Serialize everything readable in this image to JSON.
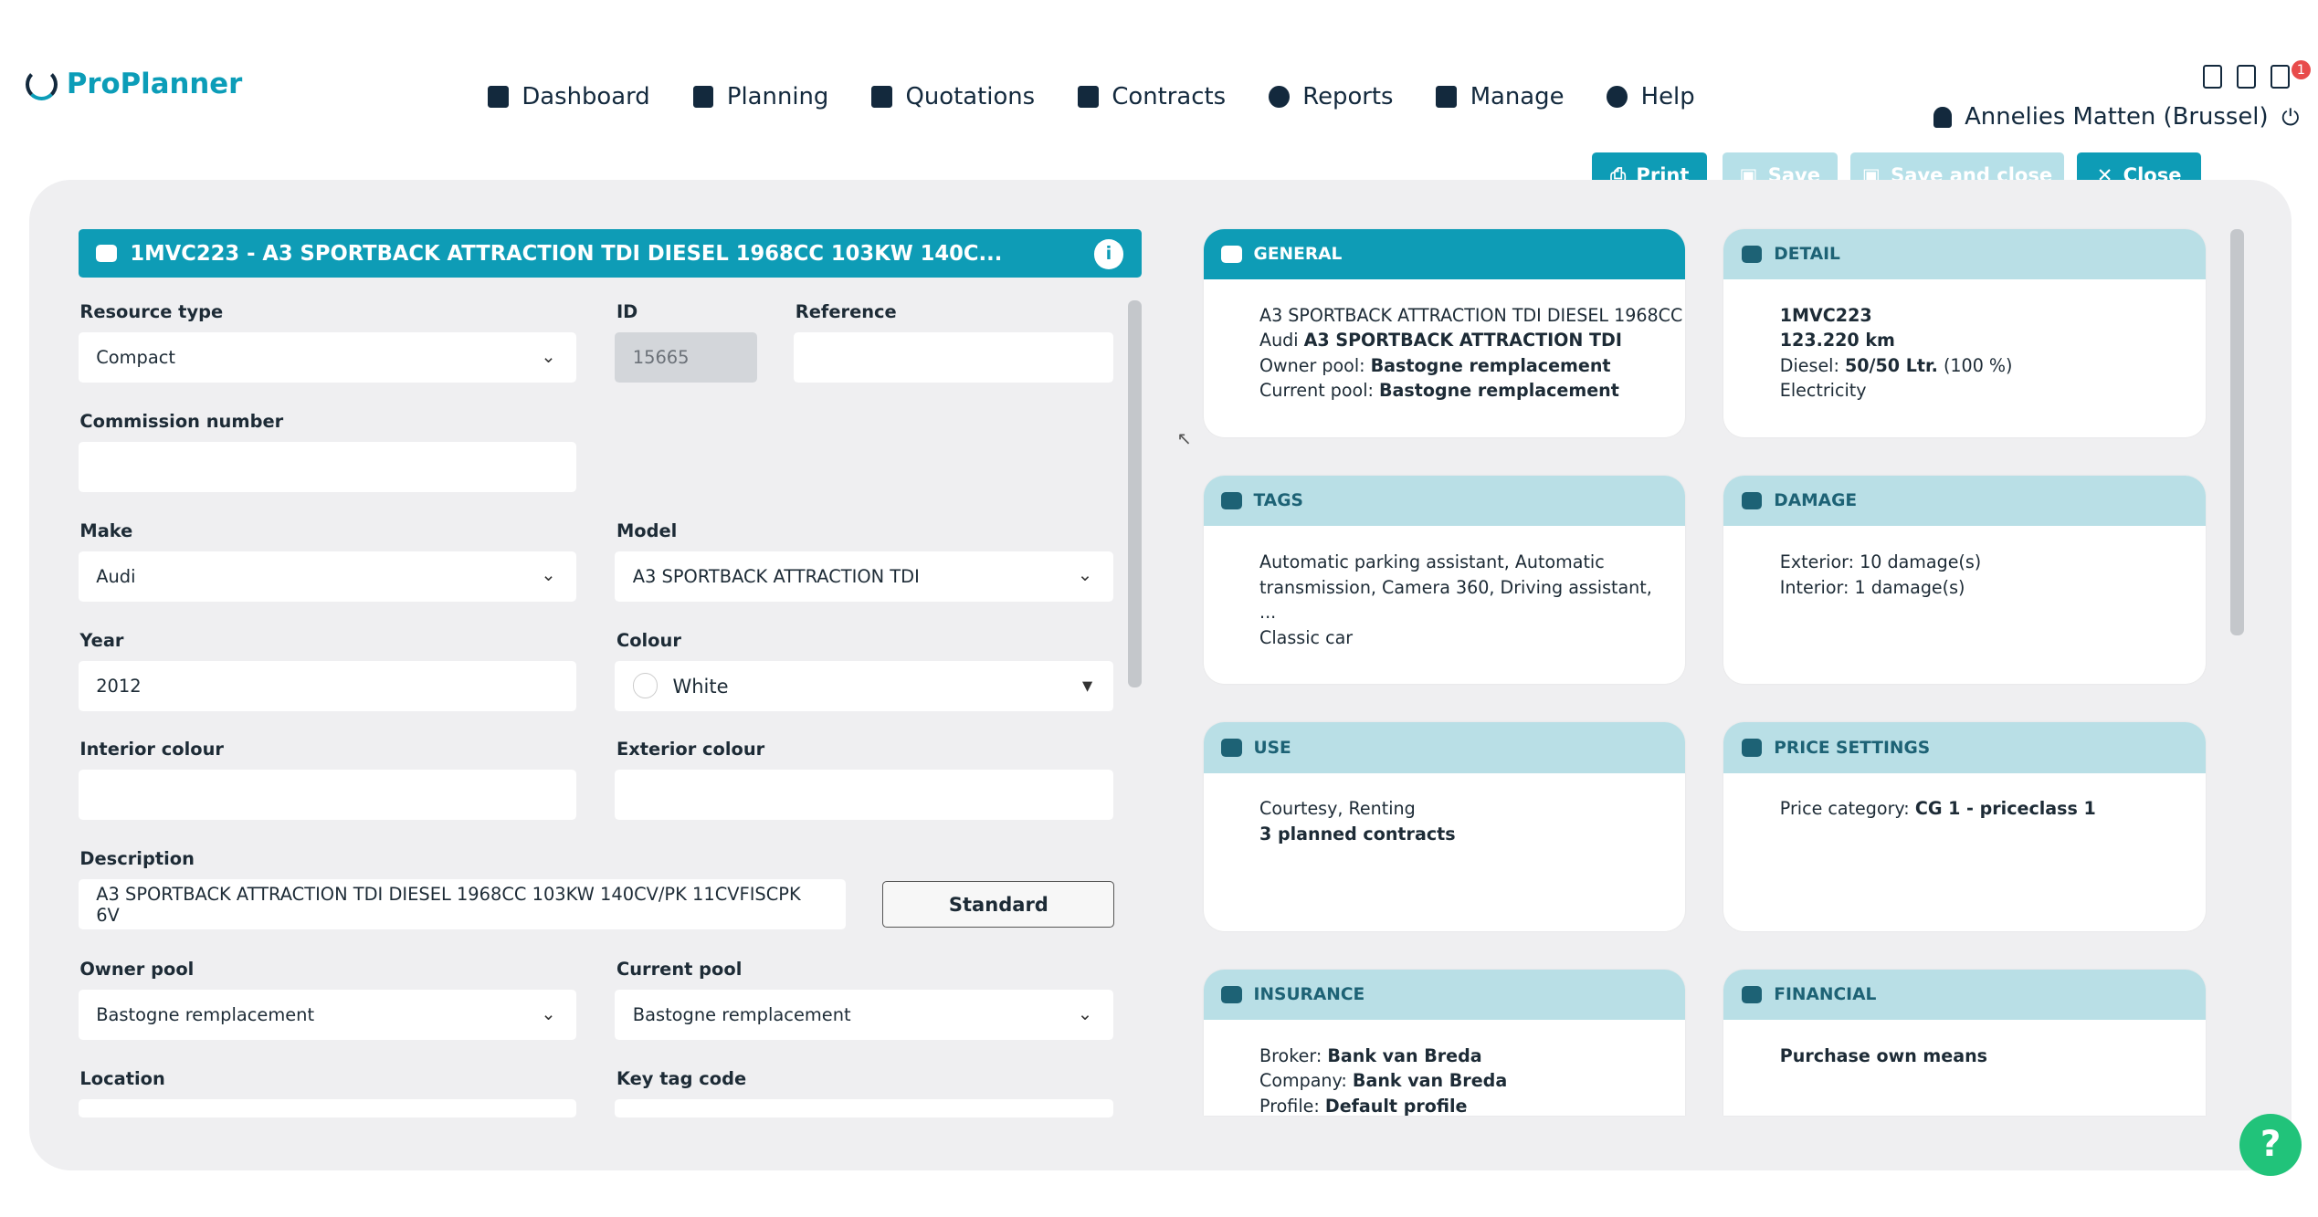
{
  "app": {
    "name": "ProPlanner"
  },
  "nav": [
    {
      "label": "Dashboard",
      "icon": "grid-icon"
    },
    {
      "label": "Planning",
      "icon": "calendar-icon"
    },
    {
      "label": "Quotations",
      "icon": "file-icon"
    },
    {
      "label": "Contracts",
      "icon": "contract-icon"
    },
    {
      "label": "Reports",
      "icon": "pie-chart-icon"
    },
    {
      "label": "Manage",
      "icon": "manage-icon"
    },
    {
      "label": "Help",
      "icon": "question-icon"
    }
  ],
  "user": {
    "name": "Annelies Matten (Brussel)",
    "notification_count": "1"
  },
  "toolbar": {
    "print": "Print",
    "save": "Save",
    "save_close": "Save and close",
    "close": "Close"
  },
  "colors": {
    "primary": "#0e9cb6",
    "primary_light": "#b9dfe6",
    "help": "#21c37a",
    "badge": "#e84b4b"
  },
  "form": {
    "title": "1MVC223 - A3 SPORTBACK ATTRACTION TDI DIESEL 1968CC 103KW 140C...",
    "resource_type": {
      "label": "Resource type",
      "value": "Compact"
    },
    "id": {
      "label": "ID",
      "value": "15665"
    },
    "reference": {
      "label": "Reference",
      "value": ""
    },
    "commission": {
      "label": "Commission number",
      "value": ""
    },
    "make": {
      "label": "Make",
      "value": "Audi"
    },
    "model": {
      "label": "Model",
      "value": "A3 SPORTBACK ATTRACTION TDI"
    },
    "year": {
      "label": "Year",
      "value": "2012"
    },
    "colour": {
      "label": "Colour",
      "value": "White"
    },
    "interior": {
      "label": "Interior colour",
      "value": ""
    },
    "exterior": {
      "label": "Exterior colour",
      "value": ""
    },
    "description": {
      "label": "Description",
      "value": "A3 SPORTBACK ATTRACTION TDI DIESEL 1968CC 103KW 140CV/PK 11CVFISCPK 6V",
      "button": "Standard"
    },
    "owner_pool": {
      "label": "Owner pool",
      "value": "Bastogne remplacement"
    },
    "current_pool": {
      "label": "Current pool",
      "value": "Bastogne remplacement"
    },
    "location": {
      "label": "Location",
      "value": ""
    },
    "key_tag": {
      "label": "Key tag code",
      "value": ""
    }
  },
  "cards": [
    {
      "title": "GENERAL",
      "icon": "car-icon",
      "active": true,
      "items": [
        {
          "pre": "A3 SPORTBACK ATTRACTION TDI DIESEL 1968CC",
          "bold": ""
        },
        {
          "pre": "Audi ",
          "bold": "A3 SPORTBACK ATTRACTION TDI"
        },
        {
          "pre": "Owner pool: ",
          "bold": "Bastogne remplacement"
        },
        {
          "pre": "Current pool: ",
          "bold": "Bastogne remplacement"
        }
      ]
    },
    {
      "title": "DETAIL",
      "icon": "car-icon",
      "active": false,
      "items": [
        {
          "pre": "",
          "bold": "1MVC223"
        },
        {
          "pre": "",
          "bold": "123.220 km"
        },
        {
          "pre": "Diesel: ",
          "bold": "50/50 Ltr.",
          "post": " (100 %)"
        },
        {
          "pre": "Electricity",
          "bold": ""
        }
      ]
    },
    {
      "title": "TAGS",
      "icon": "tags-icon",
      "active": false,
      "items": [
        {
          "pre": "Automatic parking assistant, Automatic transmission, Camera 360, Driving assistant, ...",
          "bold": ""
        },
        {
          "pre": "Classic car",
          "bold": ""
        }
      ]
    },
    {
      "title": "DAMAGE",
      "icon": "car-crash-icon",
      "active": false,
      "items": [
        {
          "pre": "Exterior: 10 damage(s)",
          "bold": ""
        },
        {
          "pre": "Interior: 1 damage(s)",
          "bold": ""
        }
      ]
    },
    {
      "title": "USE",
      "icon": "bar-chart-icon",
      "active": false,
      "items": [
        {
          "pre": "Courtesy, Renting",
          "bold": ""
        },
        {
          "pre": "",
          "bold": "3 planned contracts"
        }
      ]
    },
    {
      "title": "PRICE SETTINGS",
      "icon": "coins-icon",
      "active": false,
      "items": [
        {
          "pre": "Price category: ",
          "bold": "CG 1 - priceclass 1"
        }
      ]
    },
    {
      "title": "INSURANCE",
      "icon": "shield-icon",
      "active": false,
      "items": [
        {
          "pre": "Broker: ",
          "bold": "Bank van Breda"
        },
        {
          "pre": "Company: ",
          "bold": "Bank van Breda"
        },
        {
          "pre": "Profile: ",
          "bold": "Default profile"
        }
      ]
    },
    {
      "title": "FINANCIAL",
      "icon": "balance-scale-icon",
      "active": false,
      "items": [
        {
          "pre": "",
          "bold": "Purchase own means"
        }
      ]
    }
  ],
  "help_button": "?"
}
